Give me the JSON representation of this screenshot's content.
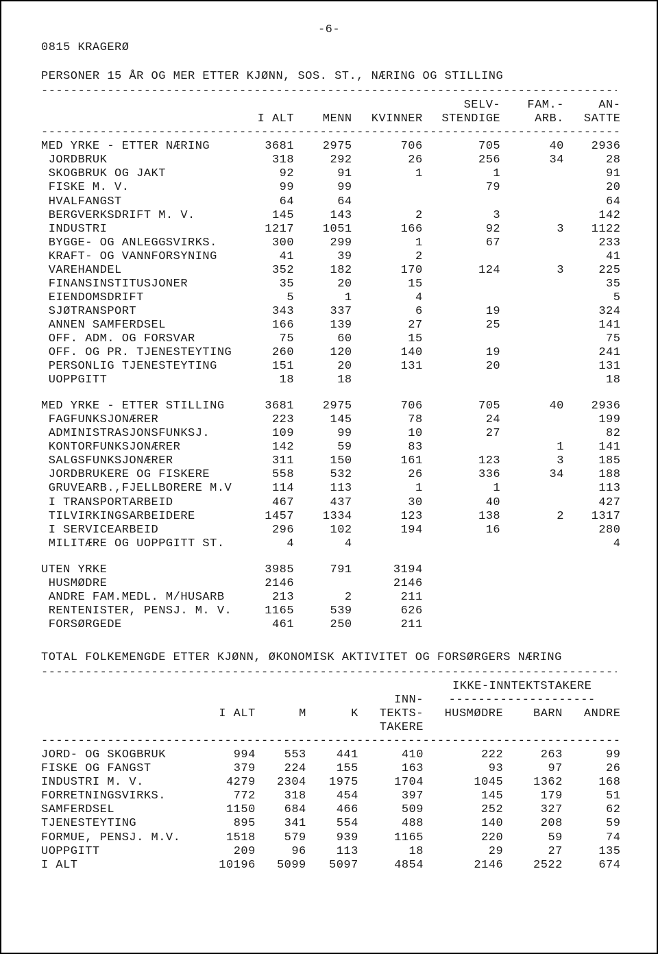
{
  "page_number": "-6-",
  "municipality": "0815 KRAGERØ",
  "table1": {
    "title": "PERSONER 15 ÅR OG MER ETTER KJØNN, SOS. ST., NÆRING OG STILLING",
    "dash": "-------------------------------------------------------------------------------",
    "columns_top": [
      "",
      "",
      "",
      "",
      "SELV-",
      "FAM.-",
      "AN-"
    ],
    "columns_bottom": [
      "",
      "I ALT",
      "MENN",
      "KVINNER",
      "STENDIGE",
      "ARB.",
      "SATTE"
    ],
    "groups": [
      {
        "rows": [
          {
            "label": "MED YRKE - ETTER NÆRING",
            "v": [
              "3681",
              "2975",
              "706",
              "705",
              "40",
              "2936"
            ]
          },
          {
            "label": " JORDBRUK",
            "v": [
              "318",
              "292",
              "26",
              "256",
              "34",
              "28"
            ]
          },
          {
            "label": " SKOGBRUK OG JAKT",
            "v": [
              "92",
              "91",
              "1",
              "1",
              "",
              "91"
            ]
          },
          {
            "label": " FISKE M. V.",
            "v": [
              "99",
              "99",
              "",
              "79",
              "",
              "20"
            ]
          },
          {
            "label": " HVALFANGST",
            "v": [
              "64",
              "64",
              "",
              "",
              "",
              "64"
            ]
          },
          {
            "label": " BERGVERKSDRIFT M. V.",
            "v": [
              "145",
              "143",
              "2",
              "3",
              "",
              "142"
            ]
          },
          {
            "label": " INDUSTRI",
            "v": [
              "1217",
              "1051",
              "166",
              "92",
              "3",
              "1122"
            ]
          },
          {
            "label": " BYGGE- OG ANLEGGSVIRKS.",
            "v": [
              "300",
              "299",
              "1",
              "67",
              "",
              "233"
            ]
          },
          {
            "label": " KRAFT- OG VANNFORSYNING",
            "v": [
              "41",
              "39",
              "2",
              "",
              "",
              "41"
            ]
          },
          {
            "label": " VAREHANDEL",
            "v": [
              "352",
              "182",
              "170",
              "124",
              "3",
              "225"
            ]
          },
          {
            "label": " FINANSINSTITUSJONER",
            "v": [
              "35",
              "20",
              "15",
              "",
              "",
              "35"
            ]
          },
          {
            "label": " EIENDOMSDRIFT",
            "v": [
              "5",
              "1",
              "4",
              "",
              "",
              "5"
            ]
          },
          {
            "label": " SJØTRANSPORT",
            "v": [
              "343",
              "337",
              "6",
              "19",
              "",
              "324"
            ]
          },
          {
            "label": " ANNEN SAMFERDSEL",
            "v": [
              "166",
              "139",
              "27",
              "25",
              "",
              "141"
            ]
          },
          {
            "label": " OFF. ADM. OG FORSVAR",
            "v": [
              "75",
              "60",
              "15",
              "",
              "",
              "75"
            ]
          },
          {
            "label": " OFF. OG PR. TJENESTEYTING",
            "v": [
              "260",
              "120",
              "140",
              "19",
              "",
              "241"
            ]
          },
          {
            "label": " PERSONLIG TJENESTEYTING",
            "v": [
              "151",
              "20",
              "131",
              "20",
              "",
              "131"
            ]
          },
          {
            "label": " UOPPGITT",
            "v": [
              "18",
              "18",
              "",
              "",
              "",
              "18"
            ]
          }
        ]
      },
      {
        "rows": [
          {
            "label": "MED YRKE - ETTER STILLING",
            "v": [
              "3681",
              "2975",
              "706",
              "705",
              "40",
              "2936"
            ]
          },
          {
            "label": " FAGFUNKSJONÆRER",
            "v": [
              "223",
              "145",
              "78",
              "24",
              "",
              "199"
            ]
          },
          {
            "label": " ADMINISTRASJONSFUNKSJ.",
            "v": [
              "109",
              "99",
              "10",
              "27",
              "",
              "82"
            ]
          },
          {
            "label": " KONTORFUNKSJONÆRER",
            "v": [
              "142",
              "59",
              "83",
              "",
              "1",
              "141"
            ]
          },
          {
            "label": " SALGSFUNKSJONÆRER",
            "v": [
              "311",
              "150",
              "161",
              "123",
              "3",
              "185"
            ]
          },
          {
            "label": " JORDBRUKERE OG FISKERE",
            "v": [
              "558",
              "532",
              "26",
              "336",
              "34",
              "188"
            ]
          },
          {
            "label": " GRUVEARB.,FJELLBORERE M.V",
            "v": [
              "114",
              "113",
              "1",
              "1",
              "",
              "113"
            ]
          },
          {
            "label": " I TRANSPORTARBEID",
            "v": [
              "467",
              "437",
              "30",
              "40",
              "",
              "427"
            ]
          },
          {
            "label": " TILVIRKINGSARBEIDERE",
            "v": [
              "1457",
              "1334",
              "123",
              "138",
              "2",
              "1317"
            ]
          },
          {
            "label": " I SERVICEARBEID",
            "v": [
              "296",
              "102",
              "194",
              "16",
              "",
              "280"
            ]
          },
          {
            "label": " MILITÆRE OG UOPPGITT ST.",
            "v": [
              "4",
              "4",
              "",
              "",
              "",
              "4"
            ]
          }
        ]
      },
      {
        "rows": [
          {
            "label": "UTEN YRKE",
            "v": [
              "3985",
              "791",
              "3194",
              "",
              "",
              ""
            ]
          },
          {
            "label": " HUSMØDRE",
            "v": [
              "2146",
              "",
              "2146",
              "",
              "",
              ""
            ]
          },
          {
            "label": " ANDRE FAM.MEDL. M/HUSARB",
            "v": [
              "213",
              "2",
              "211",
              "",
              "",
              ""
            ]
          },
          {
            "label": " RENTENISTER, PENSJ. M. V.",
            "v": [
              "1165",
              "539",
              "626",
              "",
              "",
              ""
            ]
          },
          {
            "label": " FORSØRGEDE",
            "v": [
              "461",
              "250",
              "211",
              "",
              "",
              ""
            ]
          }
        ]
      }
    ]
  },
  "table2": {
    "title": "TOTAL FOLKEMENGDE ETTER KJØNN, ØKONOMISK AKTIVITET OG FORSØRGERS NÆRING",
    "dash": "-------------------------------------------------------------------------------",
    "group_header": "IKKE-INNTEKTSTAKERE",
    "group_dash": "--------------------",
    "columns_r1": [
      "",
      "",
      "",
      "",
      "INN-",
      "",
      "",
      ""
    ],
    "columns_r2": [
      "",
      "I ALT",
      "M",
      "K",
      "TEKTS-",
      "",
      "",
      ""
    ],
    "columns_r3": [
      "",
      "",
      "",
      "",
      "TAKERE",
      "HUSMØDRE",
      "BARN",
      "ANDRE"
    ],
    "rows": [
      {
        "label": "JORD- OG SKOGBRUK",
        "v": [
          "994",
          "553",
          "441",
          "410",
          "222",
          "263",
          "99"
        ]
      },
      {
        "label": "FISKE OG FANGST",
        "v": [
          "379",
          "224",
          "155",
          "163",
          "93",
          "97",
          "26"
        ]
      },
      {
        "label": "INDUSTRI M. V.",
        "v": [
          "4279",
          "2304",
          "1975",
          "1704",
          "1045",
          "1362",
          "168"
        ]
      },
      {
        "label": "FORRETNINGSVIRKS.",
        "v": [
          "772",
          "318",
          "454",
          "397",
          "145",
          "179",
          "51"
        ]
      },
      {
        "label": "SAMFERDSEL",
        "v": [
          "1150",
          "684",
          "466",
          "509",
          "252",
          "327",
          "62"
        ]
      },
      {
        "label": "TJENESTEYTING",
        "v": [
          "895",
          "341",
          "554",
          "488",
          "140",
          "208",
          "59"
        ]
      },
      {
        "label": "FORMUE, PENSJ. M.V.",
        "v": [
          "1518",
          "579",
          "939",
          "1165",
          "220",
          "59",
          "74"
        ]
      },
      {
        "label": "UOPPGITT",
        "v": [
          "209",
          "96",
          "113",
          "18",
          "29",
          "27",
          "135"
        ]
      },
      {
        "label": "I ALT",
        "v": [
          "10196",
          "5099",
          "5097",
          "4854",
          "2146",
          "2522",
          "674"
        ]
      }
    ]
  }
}
